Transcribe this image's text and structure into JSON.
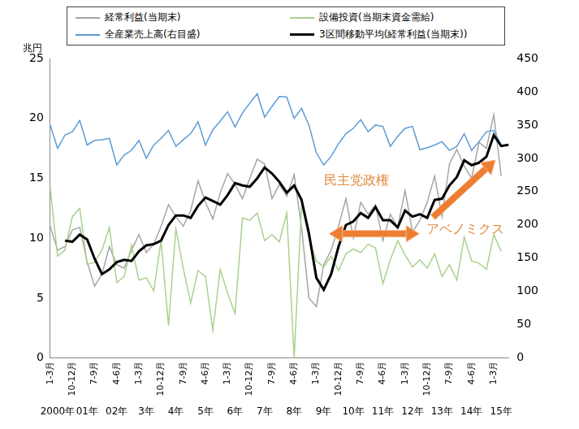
{
  "chart_data": {
    "type": "line",
    "ylabel": "兆円",
    "categories": [
      "1-3月",
      null,
      null,
      "10-12月",
      null,
      null,
      "7-9月",
      null,
      null,
      "4-6月",
      null,
      null,
      "1-3月",
      null,
      null,
      "10-12月",
      null,
      null,
      "7-9月",
      null,
      null,
      "4-6月",
      null,
      null,
      "1-3月",
      null,
      null,
      "10-12月",
      null,
      null,
      "7-9月",
      null,
      null,
      "4-6月",
      null,
      null,
      "1-3月",
      null,
      null,
      "10-12月",
      null,
      null,
      "7-9月",
      null,
      null,
      "4-6月",
      null,
      null,
      "1-3月",
      null,
      null,
      "10-12月",
      null,
      null,
      "7-9月",
      null,
      null,
      "4-6月",
      null,
      null,
      "1-3月",
      null,
      null
    ],
    "year_labels": [
      null,
      "2000年",
      null,
      null,
      null,
      "01年",
      null,
      null,
      null,
      "02年",
      null,
      null,
      null,
      "3年",
      null,
      null,
      null,
      "4年",
      null,
      null,
      null,
      "5年",
      null,
      null,
      null,
      "6年",
      null,
      null,
      null,
      "7年",
      null,
      null,
      null,
      "8年",
      null,
      null,
      null,
      "9年",
      null,
      null,
      null,
      "10年",
      null,
      null,
      null,
      "11年",
      null,
      null,
      null,
      "12年",
      null,
      null,
      null,
      "13年",
      null,
      null,
      null,
      "14年",
      null,
      null,
      null,
      "15年",
      null
    ],
    "series": [
      {
        "name": "経常利益(当期末)",
        "color": "#a5a5a5",
        "axis": "y",
        "values": [
          11.0,
          9.0,
          9.3,
          10.7,
          10.9,
          8.0,
          6.0,
          7.0,
          9.3,
          7.8,
          7.5,
          9.0,
          10.3,
          8.8,
          9.5,
          11.0,
          12.8,
          11.8,
          11.0,
          12.3,
          14.8,
          13.0,
          11.6,
          13.8,
          15.4,
          14.5,
          13.3,
          15.0,
          16.6,
          16.2,
          13.3,
          14.5,
          13.5,
          15.3,
          10.9,
          5.0,
          4.3,
          7.8,
          9.0,
          11.0,
          13.3,
          10.0,
          13.0,
          12.0,
          12.8,
          9.8,
          12.0,
          10.9,
          14.0,
          10.5,
          11.5,
          13.0,
          15.2,
          11.8,
          16.2,
          17.4,
          16.0,
          15.0,
          18.0,
          17.5,
          20.3,
          15.2,
          null
        ]
      },
      {
        "name": "設備投資(当期末資金需給)",
        "color": "#a9d18e",
        "axis": "y",
        "values": [
          14.2,
          8.5,
          9.0,
          11.8,
          12.5,
          7.8,
          8.0,
          9.0,
          10.9,
          6.3,
          6.8,
          9.4,
          6.5,
          6.7,
          5.6,
          9.8,
          2.7,
          10.8,
          7.5,
          4.6,
          7.3,
          6.8,
          2.3,
          7.4,
          5.4,
          3.7,
          11.7,
          11.5,
          12.1,
          9.8,
          10.3,
          9.7,
          12.1,
          0.0,
          12.8,
          10.0,
          8.1,
          7.6,
          8.5,
          7.3,
          8.7,
          9.1,
          8.8,
          9.5,
          9.2,
          6.2,
          8.2,
          9.8,
          8.6,
          7.6,
          8.2,
          7.5,
          8.7,
          6.8,
          7.8,
          6.5,
          10.1,
          8.1,
          7.9,
          7.4,
          10.3,
          8.9,
          null
        ]
      },
      {
        "name": "全産業売上高(右目盛)",
        "color": "#5b9bd5",
        "axis": "y2",
        "values": [
          350,
          315,
          335,
          340,
          357,
          320,
          327,
          328,
          330,
          290,
          305,
          312,
          327,
          300,
          320,
          330,
          342,
          318,
          328,
          337,
          355,
          320,
          343,
          356,
          370,
          347,
          368,
          383,
          397,
          362,
          378,
          393,
          392,
          360,
          375,
          350,
          308,
          290,
          303,
          322,
          337,
          345,
          358,
          340,
          350,
          348,
          318,
          333,
          345,
          348,
          313,
          316,
          320,
          325,
          312,
          318,
          337,
          312,
          325,
          340,
          342,
          320,
          null
        ]
      },
      {
        "name": "3区間移動平均(経常利益(当期末))",
        "color": "#000000",
        "axis": "y",
        "values": [
          null,
          null,
          9.8,
          9.7,
          10.3,
          9.9,
          8.3,
          7.0,
          7.4,
          8.0,
          8.2,
          8.1,
          8.9,
          9.4,
          9.5,
          9.8,
          11.1,
          11.9,
          11.9,
          11.7,
          12.7,
          13.4,
          13.1,
          12.8,
          13.6,
          14.6,
          14.4,
          14.3,
          15.0,
          15.9,
          15.4,
          14.7,
          13.8,
          14.4,
          13.2,
          10.4,
          6.7,
          5.7,
          7.0,
          9.3,
          11.1,
          11.4,
          12.1,
          11.7,
          12.6,
          11.5,
          11.5,
          10.9,
          12.3,
          11.8,
          12.0,
          11.7,
          13.2,
          13.3,
          14.4,
          15.1,
          16.5,
          16.1,
          16.3,
          16.8,
          18.6,
          17.7,
          17.8
        ]
      }
    ],
    "ylim": [
      0,
      25
    ],
    "yticks": [
      0,
      5,
      10,
      15,
      20,
      25
    ],
    "y2lim": [
      0,
      450
    ],
    "y2ticks": [
      0,
      50,
      100,
      150,
      200,
      250,
      300,
      350,
      400,
      450
    ],
    "grid": false,
    "legend": "top",
    "annotations": [
      {
        "text": "民主党政権"
      },
      {
        "text": "アベノミクス"
      }
    ]
  }
}
